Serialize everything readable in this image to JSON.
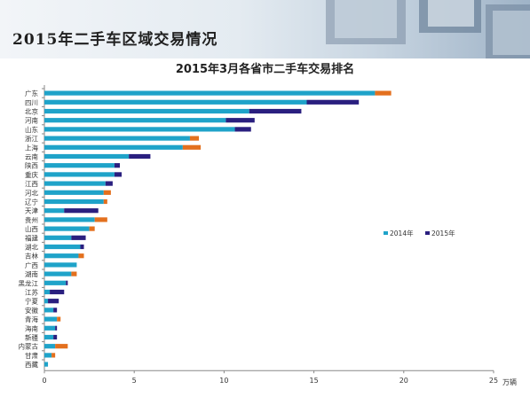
{
  "header": {
    "title": "2015年二手车区域交易情况"
  },
  "chart_data": {
    "type": "bar",
    "orientation": "horizontal",
    "stacked": true,
    "title": "2015年3月各省市二手车交易排名",
    "xlabel": "",
    "unit_label": "万辆",
    "xlim": [
      0,
      25
    ],
    "xticks": [
      0,
      5,
      10,
      15,
      20,
      25
    ],
    "grid": false,
    "legend_position": "right",
    "categories": [
      "广东",
      "四川",
      "北京",
      "河南",
      "山东",
      "浙江",
      "上海",
      "云南",
      "陕西",
      "重庆",
      "江西",
      "河北",
      "辽宁",
      "天津",
      "贵州",
      "山西",
      "福建",
      "湖北",
      "吉林",
      "广西",
      "湖南",
      "黑龙江",
      "江苏",
      "宁夏",
      "安徽",
      "青海",
      "海南",
      "新疆",
      "内蒙古",
      "甘肃",
      "西藏"
    ],
    "series": [
      {
        "name": "2014年",
        "color": "#1fa3c9",
        "values": [
          18.4,
          14.6,
          11.4,
          10.1,
          10.6,
          8.1,
          7.7,
          4.7,
          3.9,
          3.9,
          3.4,
          3.3,
          3.3,
          1.1,
          2.8,
          2.5,
          1.5,
          2.0,
          1.9,
          1.8,
          1.5,
          1.2,
          0.3,
          0.2,
          0.5,
          0.7,
          0.6,
          0.5,
          0.6,
          0.4,
          0.2
        ]
      },
      {
        "name": "2015年",
        "color": "#2a1f7f",
        "values": [
          0,
          2.9,
          2.9,
          1.6,
          0.9,
          0,
          0,
          1.2,
          0.3,
          0.4,
          0.4,
          0,
          0,
          1.9,
          0,
          0,
          0.8,
          0.2,
          0,
          0,
          0,
          0.1,
          0.8,
          0.6,
          0.2,
          0,
          0.1,
          0.2,
          0,
          0,
          0
        ]
      },
      {
        "name": "",
        "color": "#e3701e",
        "values": [
          0.9,
          0,
          0,
          0,
          0,
          0.5,
          1.0,
          0,
          0,
          0,
          0,
          0.4,
          0.2,
          0,
          0.7,
          0.3,
          0,
          0,
          0.3,
          0,
          0.3,
          0,
          0,
          0,
          0,
          0.2,
          0,
          0,
          0.7,
          0.2,
          0
        ]
      }
    ]
  }
}
